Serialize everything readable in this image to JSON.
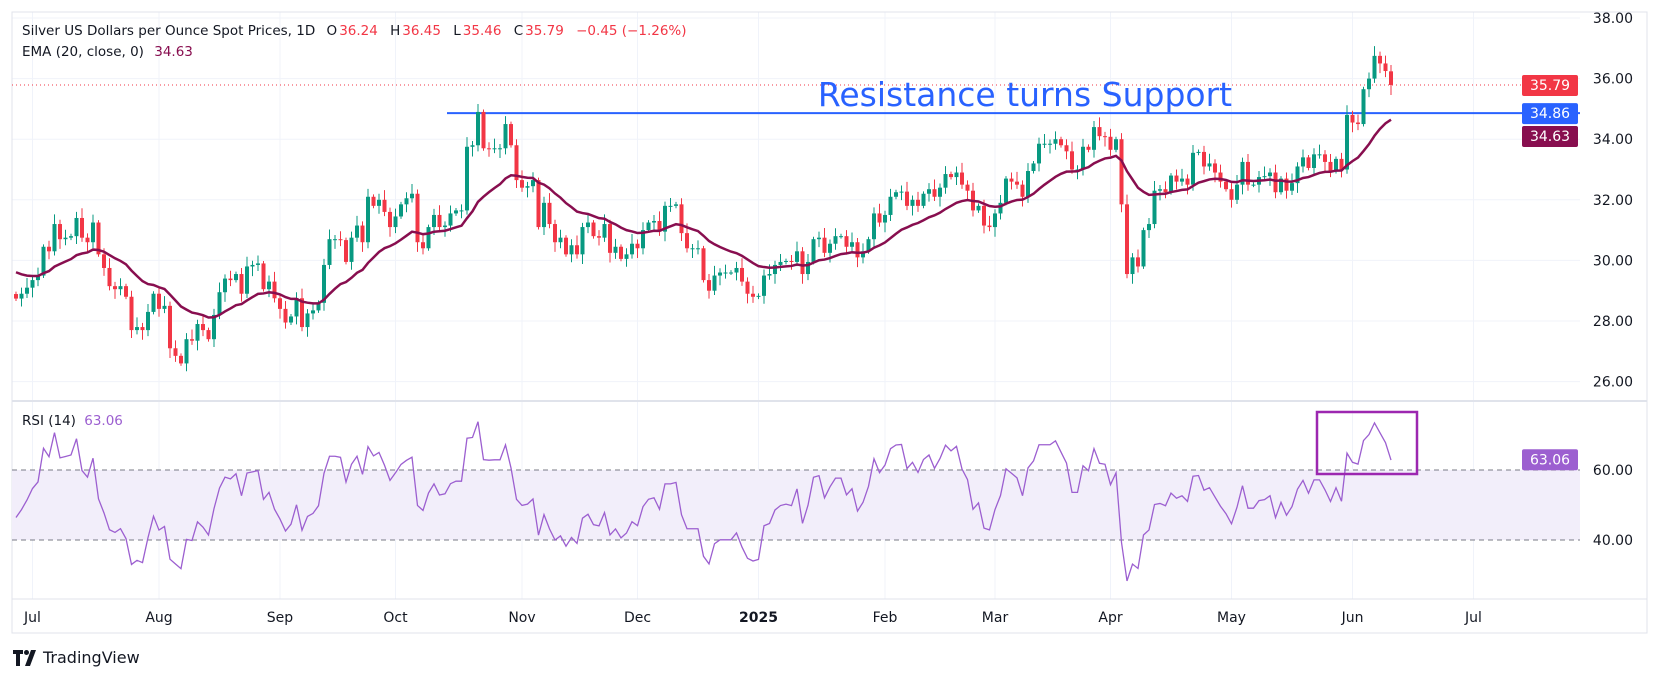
{
  "legend": {
    "symbol_title": "Silver US Dollars per Ounce Spot Prices, 1D",
    "open_label": "O",
    "open": "36.24",
    "high_label": "H",
    "high": "36.45",
    "low_label": "L",
    "low": "35.46",
    "close_label": "C",
    "close": "35.79",
    "change": "−0.45 (−1.26%)",
    "ema_label": "EMA (20, close, 0)",
    "ema_value": "34.63"
  },
  "rsi_legend": {
    "label": "RSI (14)",
    "value": "63.06"
  },
  "annotation": {
    "text": "Resistance turns Support",
    "level": 34.86
  },
  "price_labels": {
    "last": "35.79",
    "resistance": "34.86",
    "ema": "34.63",
    "rsi": "63.06"
  },
  "colors": {
    "up": "#089981",
    "down": "#f23645",
    "ema": "#880e4f",
    "resistance": "#2962ff",
    "rsi": "#9c5fd0",
    "rsi_box": "#9c27b0",
    "rsi_band": "#f2eefa"
  },
  "logo": {
    "text": "TradingView"
  },
  "chart_data": [
    {
      "type": "candlestick",
      "title": "Silver US Dollars per Ounce Spot Prices, 1D",
      "y_ticks": [
        "38.00",
        "36.00",
        "34.00",
        "32.00",
        "30.00",
        "28.00",
        "26.00"
      ],
      "ylim": [
        26,
        38
      ],
      "x_ticks": [
        "Jul",
        "Aug",
        "Sep",
        "Oct",
        "Nov",
        "Dec",
        "2025",
        "Feb",
        "Mar",
        "Apr",
        "May",
        "Jun",
        "Jul"
      ],
      "last_bar": {
        "open": 36.24,
        "high": 36.45,
        "low": 35.46,
        "close": 35.79
      },
      "ema_period": 20,
      "close": [
        28.74,
        28.9,
        29.1,
        29.35,
        29.5,
        30.45,
        30.3,
        31.2,
        30.7,
        30.75,
        30.8,
        31.4,
        30.75,
        30.6,
        31.25,
        30.2,
        29.75,
        29.15,
        29.05,
        29.15,
        28.8,
        27.7,
        27.8,
        27.7,
        28.3,
        28.9,
        28.4,
        28.5,
        27.1,
        26.85,
        26.6,
        27.4,
        27.35,
        27.9,
        27.7,
        27.4,
        28.2,
        28.95,
        29.4,
        29.35,
        29.55,
        28.9,
        29.8,
        29.85,
        29.9,
        29.05,
        29.3,
        28.75,
        28.4,
        27.95,
        28.15,
        28.75,
        27.8,
        28.25,
        28.35,
        28.6,
        29.85,
        30.7,
        30.7,
        30.67,
        29.95,
        30.75,
        31.15,
        30.6,
        32.1,
        31.8,
        32.0,
        31.6,
        31.1,
        31.45,
        31.85,
        32.05,
        32.2,
        30.6,
        30.4,
        31.1,
        31.5,
        31.1,
        31.15,
        31.55,
        31.65,
        31.65,
        33.75,
        33.8,
        34.9,
        33.7,
        33.68,
        33.7,
        33.7,
        34.5,
        33.8,
        32.65,
        32.4,
        32.45,
        32.65,
        31.1,
        31.9,
        31.2,
        30.6,
        30.75,
        30.2,
        30.5,
        30.2,
        31.1,
        31.25,
        30.8,
        30.75,
        31.2,
        30.25,
        30.45,
        30.05,
        30.2,
        30.55,
        30.4,
        31.0,
        31.25,
        31.3,
        30.95,
        31.8,
        31.8,
        31.85,
        30.9,
        30.4,
        30.4,
        30.4,
        29.35,
        29.0,
        29.5,
        29.6,
        29.6,
        29.6,
        29.75,
        29.3,
        28.9,
        28.8,
        28.83,
        29.5,
        29.55,
        29.85,
        29.95,
        29.98,
        29.95,
        30.3,
        29.55,
        29.95,
        30.7,
        30.75,
        30.25,
        30.55,
        30.8,
        30.8,
        30.45,
        30.6,
        30.1,
        30.3,
        30.7,
        31.55,
        31.25,
        31.5,
        32.1,
        32.25,
        32.27,
        31.8,
        32.0,
        31.8,
        32.2,
        32.35,
        32.1,
        32.4,
        32.85,
        32.75,
        32.9,
        32.5,
        32.3,
        31.65,
        31.8,
        31.15,
        31.1,
        31.55,
        31.9,
        32.7,
        32.6,
        32.5,
        32.1,
        32.95,
        33.2,
        33.85,
        33.85,
        33.85,
        34.0,
        33.8,
        33.6,
        33.0,
        33.0,
        33.75,
        33.65,
        34.4,
        34.1,
        34.08,
        33.65,
        34.0,
        31.85,
        29.55,
        30.1,
        29.8,
        31.0,
        31.2,
        32.3,
        32.35,
        32.25,
        32.8,
        32.6,
        32.7,
        32.5,
        33.55,
        33.58,
        33.1,
        33.2,
        32.9,
        32.6,
        32.35,
        32.0,
        32.5,
        33.25,
        32.5,
        32.5,
        32.75,
        32.78,
        32.9,
        32.25,
        32.7,
        32.3,
        32.55,
        33.1,
        33.4,
        33.05,
        33.5,
        33.5,
        33.25,
        32.95,
        33.35,
        33.0,
        34.8,
        34.55,
        34.5,
        35.65,
        36.0,
        36.75,
        36.5,
        36.25,
        35.79
      ]
    },
    {
      "type": "line",
      "title": "RSI (14)",
      "y_ticks": [
        "60.00",
        "40.00"
      ],
      "band": [
        40,
        60
      ],
      "last_value": 63.06
    }
  ]
}
